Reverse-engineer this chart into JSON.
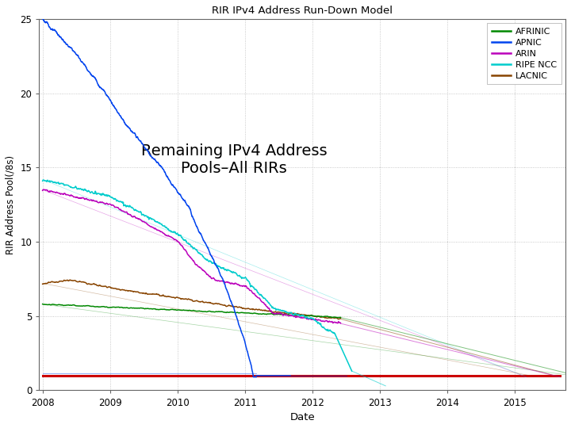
{
  "title": "RIR IPv4 Address Run-Down Model",
  "annotation": "Remaining IPv4 Address\nPools–All RIRs",
  "xlabel": "Date",
  "ylabel": "RIR Address Pool(/8s)",
  "xlim": [
    2007.95,
    2015.75
  ],
  "ylim": [
    0,
    25
  ],
  "yticks": [
    0,
    5,
    10,
    15,
    20,
    25
  ],
  "xticks": [
    2008,
    2009,
    2010,
    2011,
    2012,
    2013,
    2014,
    2015
  ],
  "colors": {
    "AFRINIC": "#008800",
    "APNIC": "#0044ee",
    "ARIN": "#bb00bb",
    "RIPE NCC": "#00cccc",
    "LACNIC": "#884400",
    "horizontal": "#cc0000"
  },
  "background": "#ffffff",
  "grid_color": "#aaaaaa"
}
